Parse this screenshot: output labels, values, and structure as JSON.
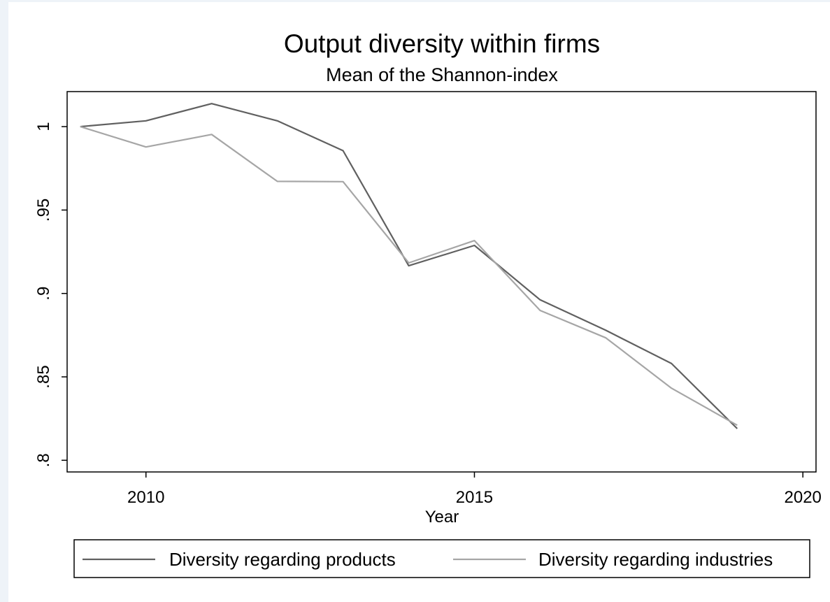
{
  "chart_data": {
    "type": "line",
    "title": "Output diversity within firms",
    "subtitle": "Mean of the Shannon-index",
    "xlabel": "Year",
    "ylabel": "",
    "xlim": [
      2008.8,
      2020.2
    ],
    "ylim": [
      0.793,
      1.021
    ],
    "xticks": [
      2010,
      2015,
      2020
    ],
    "xtick_labels": [
      "2010",
      "2015",
      "2020"
    ],
    "yticks": [
      0.8,
      0.85,
      0.9,
      0.95,
      1.0
    ],
    "ytick_labels": [
      ".8",
      ".85",
      ".9",
      ".95",
      "1"
    ],
    "grid": false,
    "legend_position": "bottom",
    "x": [
      2009,
      2010,
      2011,
      2012,
      2013,
      2014,
      2015,
      2016,
      2017,
      2018,
      2019
    ],
    "series": [
      {
        "name": "Diversity regarding products",
        "color": "#606060",
        "values": [
          1.0,
          1.0035,
          1.0138,
          1.0035,
          0.9856,
          0.9166,
          0.9288,
          0.8962,
          0.8779,
          0.858,
          0.819
        ]
      },
      {
        "name": "Diversity regarding industries",
        "color": "#a6a6a6",
        "values": [
          1.0,
          0.9878,
          0.9953,
          0.9672,
          0.967,
          0.9183,
          0.9317,
          0.8898,
          0.8734,
          0.8432,
          0.821
        ]
      }
    ]
  }
}
